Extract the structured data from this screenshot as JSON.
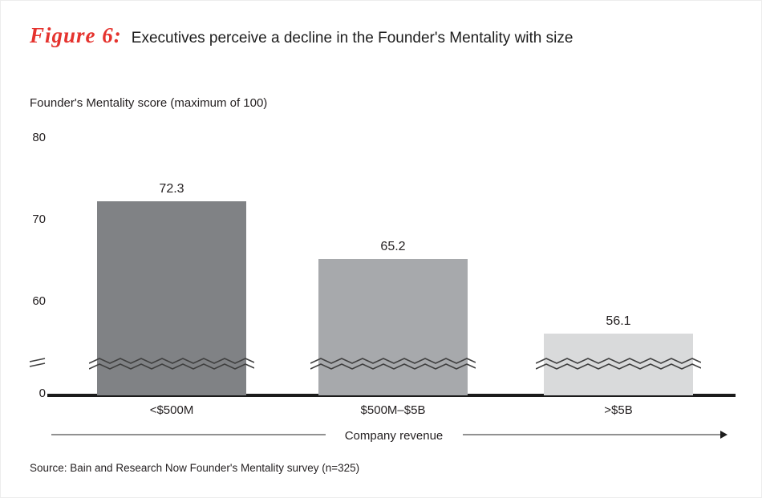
{
  "figure": {
    "label": "Figure 6:",
    "title": "Executives perceive a decline in the Founder's Mentality with size"
  },
  "chart_data": {
    "type": "bar",
    "title": "Executives perceive a decline in the Founder's Mentality with size",
    "ylabel": "Founder's Mentality score (maximum of 100)",
    "xlabel": "Company revenue",
    "categories": [
      "<$500M",
      "$500M–$5B",
      ">$5B"
    ],
    "values": [
      72.3,
      65.2,
      56.1
    ],
    "yticks": [
      80,
      70,
      60,
      0
    ],
    "ylim": [
      0,
      80
    ],
    "axis_break": true,
    "bar_colors": [
      "#808285",
      "#a7a9ac",
      "#d9dadb"
    ],
    "grid": false,
    "legend_position": "none"
  },
  "footer": {
    "source": "Source: Bain and Research Now Founder's Mentality survey (n=325)"
  },
  "colors": {
    "accent_red": "#e5332e",
    "text": "#231f20",
    "baseline": "#1b1b1b",
    "arrow_line": "#919191"
  }
}
